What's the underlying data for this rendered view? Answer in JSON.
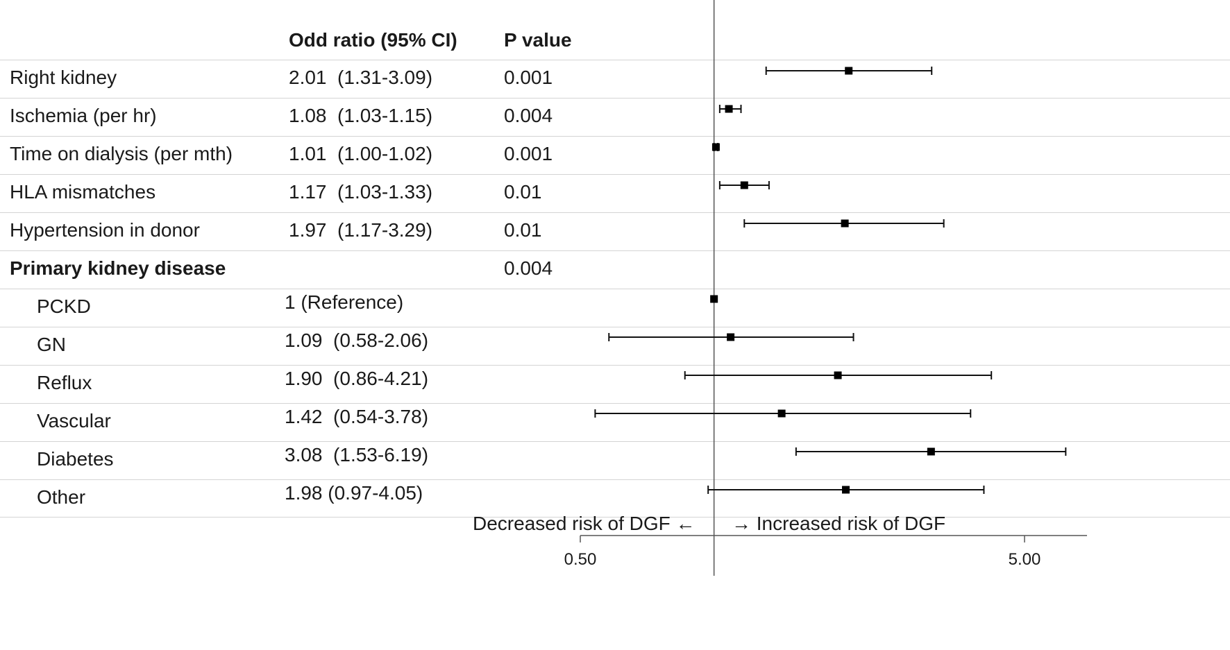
{
  "headers": {
    "or": "Odd ratio (95% CI)",
    "p": "P value"
  },
  "rows": [
    {
      "label": "Right kidney",
      "or_text": "2.01  (1.31-3.09)",
      "p": "0.001",
      "bold": false,
      "indent": false
    },
    {
      "label": "Ischemia (per hr)",
      "or_text": "1.08  (1.03-1.15)",
      "p": "0.004",
      "bold": false,
      "indent": false
    },
    {
      "label": "Time on dialysis (per mth)",
      "or_text": "1.01  (1.00-1.02)",
      "p": "0.001",
      "bold": false,
      "indent": false
    },
    {
      "label": "HLA mismatches",
      "or_text": "1.17  (1.03-1.33)",
      "p": "0.01",
      "bold": false,
      "indent": false
    },
    {
      "label": "Hypertension in donor",
      "or_text": "1.97  (1.17-3.29)",
      "p": "0.01",
      "bold": false,
      "indent": false
    },
    {
      "label": "Primary kidney disease",
      "or_text": "",
      "p": "0.004",
      "bold": true,
      "indent": false
    },
    {
      "label": "PCKD",
      "or_text": "1 (Reference)",
      "p": "",
      "bold": false,
      "indent": true
    },
    {
      "label": "GN",
      "or_text": "1.09  (0.58-2.06)",
      "p": "",
      "bold": false,
      "indent": true
    },
    {
      "label": "Reflux",
      "or_text": "1.90  (0.86-4.21)",
      "p": "",
      "bold": false,
      "indent": true
    },
    {
      "label": "Vascular",
      "or_text": "1.42  (0.54-3.78)",
      "p": "",
      "bold": false,
      "indent": true
    },
    {
      "label": "Diabetes",
      "or_text": "3.08  (1.53-6.19)",
      "p": "",
      "bold": false,
      "indent": true
    },
    {
      "label": "Other",
      "or_text": "1.98 (0.97-4.05)",
      "p": "",
      "bold": false,
      "indent": true
    }
  ],
  "chart_data": {
    "type": "forest",
    "x_scale": "log",
    "reference_line": 1,
    "xlim": [
      0.5,
      7
    ],
    "x_ticks": [
      {
        "value": 0.5,
        "label": "0.50"
      },
      {
        "value": 5,
        "label": "5.00"
      }
    ],
    "series": [
      {
        "category": "Right kidney",
        "or": 2.01,
        "lo": 1.31,
        "hi": 3.09
      },
      {
        "category": "Ischemia (per hr)",
        "or": 1.08,
        "lo": 1.03,
        "hi": 1.15
      },
      {
        "category": "Time on dialysis (per mth)",
        "or": 1.01,
        "lo": 1.0,
        "hi": 1.02
      },
      {
        "category": "HLA mismatches",
        "or": 1.17,
        "lo": 1.03,
        "hi": 1.33
      },
      {
        "category": "Hypertension in donor",
        "or": 1.97,
        "lo": 1.17,
        "hi": 3.29
      },
      {
        "category": "Primary kidney disease",
        "or": null,
        "lo": null,
        "hi": null
      },
      {
        "category": "PCKD",
        "or": 1,
        "lo": 1,
        "hi": 1
      },
      {
        "category": "GN",
        "or": 1.09,
        "lo": 0.58,
        "hi": 2.06
      },
      {
        "category": "Reflux",
        "or": 1.9,
        "lo": 0.86,
        "hi": 4.21
      },
      {
        "category": "Vascular",
        "or": 1.42,
        "lo": 0.54,
        "hi": 3.78
      },
      {
        "category": "Diabetes",
        "or": 3.08,
        "lo": 1.53,
        "hi": 6.19
      },
      {
        "category": "Other",
        "or": 1.98,
        "lo": 0.97,
        "hi": 4.05
      }
    ],
    "annotations": {
      "left": "Decreased risk of DGF ←",
      "right": "→ Increased risk of DGF"
    }
  }
}
